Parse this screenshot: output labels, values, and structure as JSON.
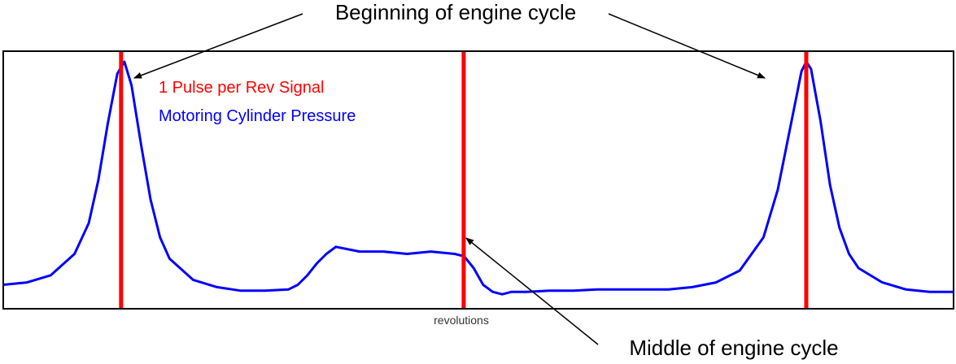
{
  "chart_data": {
    "type": "line",
    "title": "",
    "xlabel": "revolutions",
    "ylabel": "",
    "grid": false,
    "xlim": [
      0,
      2
    ],
    "ylim": [
      0,
      1
    ],
    "legend": {
      "placement": "top-left",
      "entries": [
        {
          "label": "1 Pulse per Rev Signal",
          "color": "#ff0000"
        },
        {
          "label": "Motoring Cylinder Pressure",
          "color": "#0000ff"
        }
      ]
    },
    "annotations": {
      "top": "Beginning of engine cycle",
      "bottom": "Middle of engine cycle"
    },
    "series": [
      {
        "name": "1 Pulse per Rev Signal",
        "kind": "pulse",
        "color": "#ff0000",
        "pulses_x": [
          0.248,
          0.969,
          1.69
        ]
      },
      {
        "name": "Motoring Cylinder Pressure",
        "color": "#0000ff",
        "x": [
          0,
          0.05,
          0.1,
          0.15,
          0.18,
          0.2,
          0.22,
          0.24,
          0.255,
          0.27,
          0.29,
          0.31,
          0.33,
          0.35,
          0.4,
          0.45,
          0.5,
          0.55,
          0.6,
          0.62,
          0.64,
          0.66,
          0.68,
          0.7,
          0.75,
          0.8,
          0.85,
          0.9,
          0.95,
          0.97,
          0.99,
          1.01,
          1.03,
          1.05,
          1.07,
          1.1,
          1.15,
          1.2,
          1.25,
          1.3,
          1.35,
          1.4,
          1.45,
          1.5,
          1.55,
          1.6,
          1.63,
          1.65,
          1.67,
          1.68,
          1.69,
          1.7,
          1.72,
          1.74,
          1.76,
          1.78,
          1.8,
          1.85,
          1.9,
          1.95,
          2.0
        ],
        "y": [
          0.06,
          0.07,
          0.1,
          0.19,
          0.32,
          0.5,
          0.74,
          0.95,
          1.0,
          0.9,
          0.65,
          0.42,
          0.26,
          0.17,
          0.08,
          0.05,
          0.035,
          0.035,
          0.04,
          0.06,
          0.1,
          0.15,
          0.19,
          0.22,
          0.2,
          0.2,
          0.19,
          0.2,
          0.19,
          0.18,
          0.13,
          0.06,
          0.03,
          0.02,
          0.03,
          0.03,
          0.035,
          0.035,
          0.04,
          0.04,
          0.04,
          0.04,
          0.05,
          0.07,
          0.12,
          0.26,
          0.46,
          0.66,
          0.86,
          0.96,
          1.0,
          0.97,
          0.75,
          0.48,
          0.3,
          0.19,
          0.13,
          0.07,
          0.04,
          0.03,
          0.03
        ]
      }
    ]
  }
}
